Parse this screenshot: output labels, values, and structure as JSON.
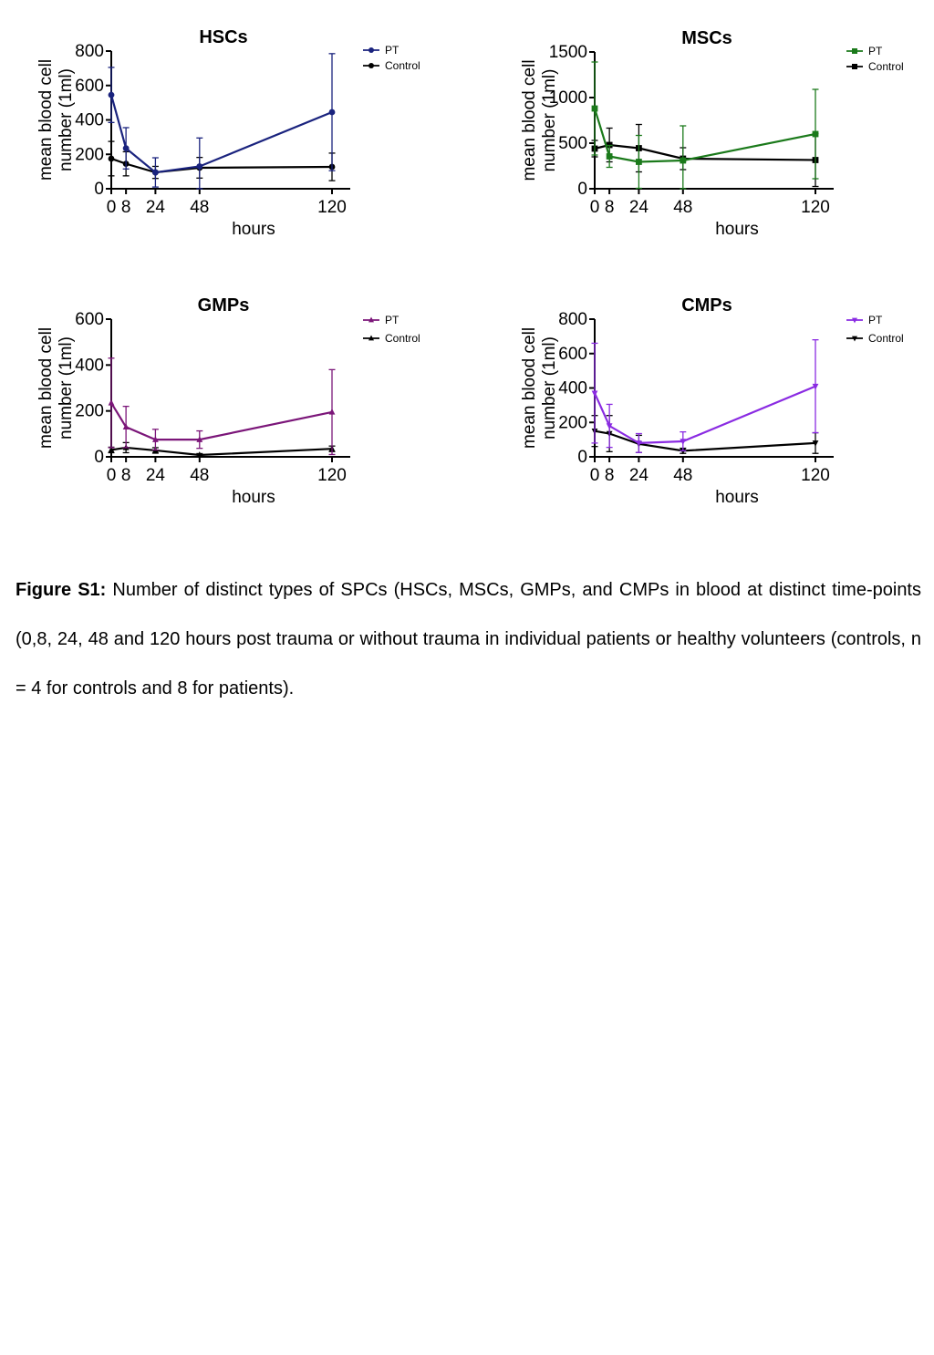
{
  "chart_data": [
    {
      "type": "line",
      "title": "HSCs",
      "xlabel": "hours",
      "ylabel": [
        "mean blood cell",
        "number (1ml)"
      ],
      "x": [
        0,
        8,
        24,
        48,
        120
      ],
      "xticks": [
        "0",
        "8",
        "24",
        "48",
        "120"
      ],
      "ylim": [
        0,
        800
      ],
      "yticks": [
        "0",
        "200",
        "400",
        "600",
        "800"
      ],
      "grid": false,
      "legend_position": "top-right",
      "marker": "circle",
      "series": [
        {
          "name": "PT",
          "color": "#1a237e",
          "values": [
            545,
            235,
            95,
            130,
            445
          ],
          "err_hi": [
            160,
            120,
            85,
            165,
            340
          ],
          "err_lo": [
            160,
            120,
            85,
            130,
            340
          ]
        },
        {
          "name": "Control",
          "color": "#000000",
          "values": [
            175,
            145,
            95,
            122,
            127
          ],
          "err_hi": [
            100,
            70,
            35,
            60,
            80
          ],
          "err_lo": [
            100,
            70,
            35,
            60,
            80
          ]
        }
      ]
    },
    {
      "type": "line",
      "title": "MSCs",
      "xlabel": "hours",
      "ylabel": [
        "mean blood cell",
        "number (1ml)"
      ],
      "x": [
        0,
        8,
        24,
        48,
        120
      ],
      "xticks": [
        "0",
        "8",
        "24",
        "48",
        "120"
      ],
      "ylim": [
        0,
        1500
      ],
      "yticks": [
        "0",
        "500",
        "1000",
        "1500"
      ],
      "grid": false,
      "legend_position": "top-right",
      "marker": "square",
      "series": [
        {
          "name": "PT",
          "color": "#1b7a1b",
          "values": [
            880,
            355,
            295,
            310,
            600
          ],
          "err_hi": [
            510,
            120,
            290,
            380,
            490
          ],
          "err_lo": [
            510,
            120,
            290,
            310,
            490
          ]
        },
        {
          "name": "Control",
          "color": "#000000",
          "values": [
            440,
            480,
            445,
            330,
            315
          ],
          "err_hi": [
            90,
            185,
            260,
            120,
            290
          ],
          "err_lo": [
            90,
            185,
            260,
            120,
            290
          ]
        }
      ]
    },
    {
      "type": "line",
      "title": "GMPs",
      "xlabel": "hours",
      "ylabel": [
        "mean blood cell",
        "number (1ml)"
      ],
      "x": [
        0,
        8,
        24,
        48,
        120
      ],
      "xticks": [
        "0",
        "8",
        "24",
        "48",
        "120"
      ],
      "ylim": [
        0,
        600
      ],
      "yticks": [
        "0",
        "200",
        "400",
        "600"
      ],
      "grid": false,
      "legend_position": "top-right",
      "marker": "triangle-up",
      "series": [
        {
          "name": "PT",
          "color": "#7b1679",
          "values": [
            235,
            130,
            75,
            75,
            195
          ],
          "err_hi": [
            195,
            90,
            45,
            38,
            185
          ],
          "err_lo": [
            195,
            90,
            45,
            38,
            185
          ]
        },
        {
          "name": "Control",
          "color": "#000000",
          "values": [
            30,
            40,
            28,
            8,
            35
          ],
          "err_hi": [
            12,
            22,
            12,
            6,
            12
          ],
          "err_lo": [
            12,
            22,
            12,
            6,
            12
          ]
        }
      ]
    },
    {
      "type": "line",
      "title": "CMPs",
      "xlabel": "hours",
      "ylabel": [
        "mean blood cell",
        "number (1ml)"
      ],
      "x": [
        0,
        8,
        24,
        48,
        120
      ],
      "xticks": [
        "0",
        "8",
        "24",
        "48",
        "120"
      ],
      "ylim": [
        0,
        800
      ],
      "yticks": [
        "0",
        "200",
        "400",
        "600",
        "800"
      ],
      "grid": false,
      "legend_position": "top-right",
      "marker": "triangle-down",
      "series": [
        {
          "name": "PT",
          "color": "#8a2be2",
          "values": [
            370,
            180,
            80,
            90,
            410
          ],
          "err_hi": [
            290,
            125,
            55,
            55,
            270
          ],
          "err_lo": [
            290,
            125,
            55,
            55,
            270
          ]
        },
        {
          "name": "Control",
          "color": "#000000",
          "values": [
            150,
            135,
            75,
            35,
            80
          ],
          "err_hi": [
            90,
            105,
            50,
            15,
            60
          ],
          "err_lo": [
            90,
            105,
            50,
            15,
            60
          ]
        }
      ]
    }
  ],
  "caption": {
    "label": "Figure S1:",
    "text": " Number of distinct types of SPCs (HSCs, MSCs, GMPs, and CMPs in blood at distinct time-points (0,8, 24, 48 and 120 hours post trauma or without trauma in individual patients or healthy volunteers (controls, n = 4 for controls and 8 for patients)."
  }
}
